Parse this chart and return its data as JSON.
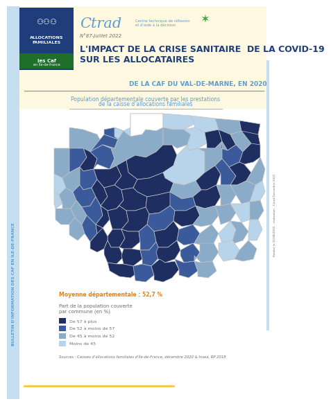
{
  "bg_color": "#ffffff",
  "yellow_bg": "#fef9e0",
  "light_blue_bar": "#c5dff0",
  "right_bar_color": "#c5dff0",
  "caf_blue_dark": "#1f3d7a",
  "caf_green": "#3aaa35",
  "ctrad_blue": "#5b9bd5",
  "title_blue": "#1f3d7a",
  "subtitle_blue": "#5b9bd5",
  "orange_color": "#e8820c",
  "text_gray": "#6d6d6d",
  "dark_navy": "#1e2e60",
  "mid_blue": "#3a5a9b",
  "light_blue": "#8bacc8",
  "very_light_blue": "#b8d4ea",
  "pale_blue": "#c9e3f5",
  "legend_colors": [
    "#1e2e60",
    "#3a5a9b",
    "#8bacc8",
    "#b8d4ea"
  ],
  "legend_labels": [
    "De 57 à plus",
    "De 52 à moins de 57",
    "De 45 à moins de 52",
    "Moins de 45"
  ],
  "moyenne_text": "Moyenne départementale : 52,7 %",
  "pop_title_line1": "Population départementale couverte par les prestations",
  "pop_title_line2": "de la caisse d'allocations familiales",
  "main_title_line1": "L'IMPACT DE LA CRISE SANITAIRE  DE LA COVID-19",
  "main_title_line2": "SUR LES ALLOCATAIRES",
  "subtitle_right": "DE LA CAF DU VAL-DE-MARNE, EN 2020",
  "bulletin_text": "BULLETIN D'INFORMATION DES CAF EN ÎLE-DE-FRANCE",
  "ctrad_text": "Ctrad",
  "ctrad_sub": "Centre technique de réflexion\net d'aide à la décision",
  "num_text": "N°87-Juillet 2022",
  "legend_title_line1": "Part de la population couverte",
  "legend_title_line2": "par commune (en %)",
  "source_text": "Sources : Caisses d'allocations familiales d'Île-de-France, décembre 2020 & Insea, RP 2018",
  "right_credit": "Réalisé le 31/08/2020 - réalisation - Ctrad Décembre 2021"
}
